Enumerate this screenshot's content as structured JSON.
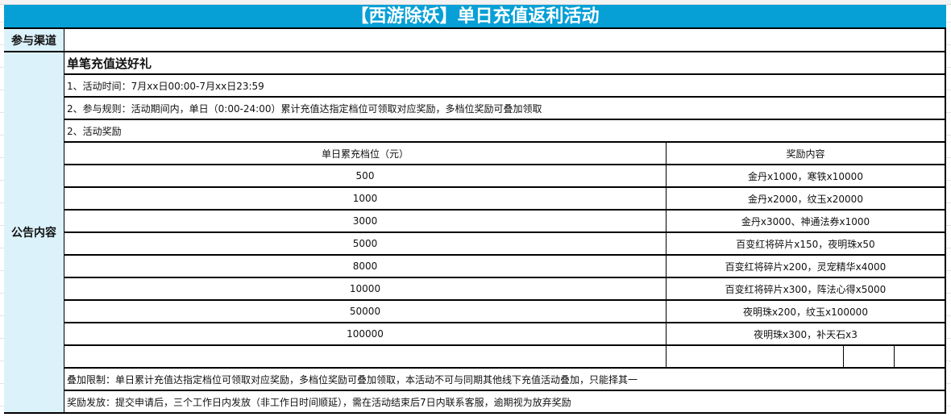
{
  "title": "【西游除妖】单日充值返利活动",
  "channel_label": "参与渠道",
  "channel_value": "",
  "content_label": "公告内容",
  "heading": "单笔充值送好礼",
  "lines": [
    "1、活动时间：7月xx日00:00-7月xx日23:59",
    "2、参与规则：活动期间内，单日（0:00-24:00）累计充值达指定档位可领取对应奖励，多档位奖励可叠加领取",
    "2、活动奖励"
  ],
  "table": {
    "headers": [
      "单日累充档位（元）",
      "奖励内容"
    ],
    "rows": [
      [
        "500",
        "金丹x1000，寒铁x10000"
      ],
      [
        "1000",
        "金丹x2000，纹玉x20000"
      ],
      [
        "3000",
        "金丹x3000、神通法券x1000"
      ],
      [
        "5000",
        "百变红将碎片x150，夜明珠x50"
      ],
      [
        "8000",
        "百变红将碎片x200，灵宠精华x4000"
      ],
      [
        "10000",
        "百变红将碎片x300，阵法心得x5000"
      ],
      [
        "50000",
        "夜明珠x200，纹玉x100000"
      ],
      [
        "100000",
        "夜明珠x300，补天石x3"
      ]
    ]
  },
  "footer": [
    "叠加限制：单日累计充值达指定档位可领取对应奖励，多档位奖励可叠加领取，本活动不可与同期其他线下充值活动叠加，只能择其一",
    "奖励发放：提交申请后，三个工作日内发放（非工作日时间顺延），需在活动结束后7日内联系客服，逾期视为放弃奖励"
  ]
}
